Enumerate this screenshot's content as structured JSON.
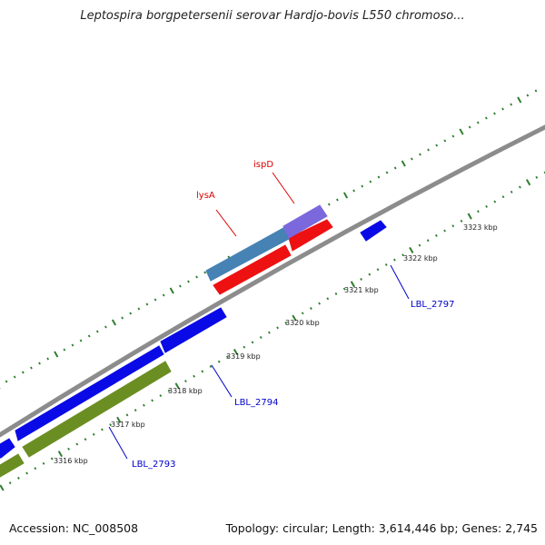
{
  "title": "Leptospira borgpetersenii serovar Hardjo-bovis L550 chromoso...",
  "footer": {
    "accession": "Accession: NC_008508",
    "stats": "Topology: circular; Length: 3,614,446 bp; Genes: 2,745"
  },
  "colors": {
    "backbone": "#8c8c8c",
    "tick": "#2e7d2e",
    "gene_blue": "#0a0ae6",
    "gene_green": "#6b8e23",
    "gene_red": "#ee1111",
    "gene_steel": "#4682b4",
    "gene_purple": "#7b68dd",
    "label_red": "#dd0000",
    "label_blue": "#0000cc"
  },
  "scale_labels": [
    "3316 kbp",
    "3317 kbp",
    "3318 kbp",
    "3319 kbp",
    "3320 kbp",
    "3321 kbp",
    "3322 kbp",
    "3323 kbp"
  ],
  "gene_labels": [
    {
      "id": "lysA",
      "text": "lysA",
      "color": "label_red"
    },
    {
      "id": "ispD",
      "text": "ispD",
      "color": "label_red"
    },
    {
      "id": "LBL_2793",
      "text": "LBL_2793",
      "color": "label_blue"
    },
    {
      "id": "LBL_2794",
      "text": "LBL_2794",
      "color": "label_blue"
    },
    {
      "id": "LBL_2797",
      "text": "LBL_2797",
      "color": "label_blue"
    }
  ]
}
